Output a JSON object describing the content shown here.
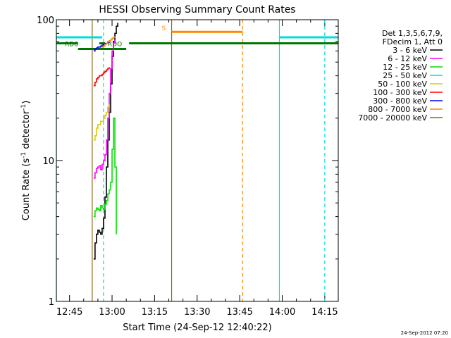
{
  "chart_data": {
    "type": "line",
    "title": "HESSI Observing Summary Count Rates",
    "xlabel": "Start Time (24-Sep-12 12:40:22)",
    "ylabel_main": "Count Rate (s",
    "ylabel_sup1": "-1",
    "ylabel_mid": " detector",
    "ylabel_sup2": "-1",
    "ylabel_end": ")",
    "footer_timestamp": "24-Sep-2012 07:20",
    "xlim": [
      "12:40:22",
      "14:19:45"
    ],
    "ylim": [
      1,
      100
    ],
    "y_scale": "log",
    "x_ticks": [
      "12:45",
      "13:00",
      "13:15",
      "13:30",
      "13:45",
      "14:00",
      "14:15"
    ],
    "y_ticks": [
      "1",
      "10",
      "100"
    ],
    "legend": {
      "header_lines": [
        "Det 1,3,5,6,7,9,",
        "FDecim 1, Att 0"
      ],
      "entries": [
        {
          "label": "3 - 6 keV",
          "color": "#000000"
        },
        {
          "label": "6 - 12 keV",
          "color": "#ff00ff"
        },
        {
          "label": "12 - 25 keV",
          "color": "#00e000"
        },
        {
          "label": "25 - 50 keV",
          "color": "#00dddd"
        },
        {
          "label": "50 - 100 keV",
          "color": "#d0d000"
        },
        {
          "label": "100 - 300 keV",
          "color": "#ff0000"
        },
        {
          "label": "300 - 800 keV",
          "color": "#0000ff"
        },
        {
          "label": "800 - 7000 keV",
          "color": "#ff8800"
        },
        {
          "label": "7000 - 20000 keV",
          "color": "#8b6914"
        }
      ]
    },
    "series": [
      {
        "name": "3 - 6 keV",
        "color": "#000000",
        "x": [
          "12:53:30",
          "12:54:00",
          "12:54:30",
          "12:55:00",
          "12:55:30",
          "12:56:00",
          "12:56:30",
          "12:57:00",
          "12:57:30",
          "12:58:00",
          "12:58:30",
          "12:59:00",
          "12:59:30",
          "13:00:00",
          "13:00:30",
          "13:01:00",
          "13:01:30",
          "13:02:00"
        ],
        "y": [
          2.0,
          2.6,
          3.0,
          3.2,
          3.1,
          3.0,
          3.3,
          3.9,
          5.5,
          9.0,
          14,
          22,
          35,
          55,
          70,
          80,
          90,
          95
        ]
      },
      {
        "name": "6 - 12 keV",
        "color": "#ff00ff",
        "x": [
          "12:53:30",
          "12:54:00",
          "12:54:30",
          "12:55:00",
          "12:55:30",
          "12:56:00",
          "12:56:30",
          "12:57:00",
          "12:57:30",
          "12:58:00",
          "12:58:30",
          "12:59:00",
          "12:59:30",
          "13:00:00",
          "13:00:30",
          "13:01:00"
        ],
        "y": [
          7.5,
          8.2,
          8.8,
          9.0,
          9.2,
          8.6,
          9.4,
          10.0,
          11,
          14,
          20,
          30,
          45,
          60,
          68,
          72
        ]
      },
      {
        "name": "12 - 25 keV",
        "color": "#00e000",
        "x": [
          "12:53:30",
          "12:54:00",
          "12:54:30",
          "12:55:00",
          "12:55:30",
          "12:56:00",
          "12:56:30",
          "12:57:00",
          "12:57:30",
          "12:58:00",
          "12:58:30",
          "12:59:00",
          "12:59:30",
          "13:00:00",
          "13:00:30",
          "13:01:00",
          "13:01:30"
        ],
        "y": [
          4.0,
          4.4,
          4.6,
          4.5,
          4.4,
          4.8,
          4.6,
          4.5,
          4.9,
          5.2,
          5.8,
          6.2,
          7.0,
          12,
          20,
          9,
          3
        ]
      },
      {
        "name": "50 - 100 keV",
        "color": "#d0d000",
        "x": [
          "12:53:30",
          "12:54:00",
          "12:54:30",
          "12:55:00",
          "12:55:30",
          "12:56:00",
          "12:56:30",
          "12:57:00",
          "12:57:30",
          "12:58:00",
          "12:58:30",
          "12:59:00"
        ],
        "y": [
          14,
          15,
          17,
          18,
          18,
          19,
          19,
          20,
          21,
          22,
          24,
          25
        ]
      },
      {
        "name": "100 - 300 keV",
        "color": "#ff0000",
        "x": [
          "12:53:30",
          "12:54:00",
          "12:54:30",
          "12:55:00",
          "12:55:30",
          "12:56:00",
          "12:56:30",
          "12:57:00",
          "12:57:30",
          "12:58:00",
          "12:58:30",
          "12:59:00"
        ],
        "y": [
          34,
          36,
          38,
          39,
          40,
          40,
          41,
          42,
          43,
          44,
          45,
          46
        ]
      },
      {
        "name": "300 - 800 keV",
        "color": "#0000ff",
        "x": [
          "12:53:30",
          "12:54:00",
          "12:54:30",
          "12:55:00",
          "12:55:30",
          "12:56:00",
          "12:56:30",
          "12:57:00",
          "12:57:30",
          "12:58:00",
          "12:58:30",
          "12:59:00"
        ],
        "y": [
          60,
          62,
          63,
          64,
          64,
          65,
          66,
          67,
          68,
          68,
          69,
          70
        ]
      },
      {
        "name": "800 - 7000 keV",
        "color": "#ff8800",
        "x": [
          "12:56:30",
          "12:57:00",
          "12:57:30",
          "12:58:00",
          "12:58:30",
          "12:59:00",
          "12:59:30",
          "13:00:00",
          "13:00:30",
          "13:01:00"
        ],
        "y": [
          64,
          65,
          67,
          68,
          70,
          71,
          72,
          74,
          75,
          76
        ]
      }
    ],
    "flags": [
      {
        "label": "",
        "color": "#00dddd",
        "y": 75,
        "x_start": "12:40:22",
        "x_end": "12:56:30"
      },
      {
        "label": "",
        "color": "#00dddd",
        "y": 75,
        "x_start": "13:59:00",
        "x_end": "14:19:45"
      },
      {
        "label": "RD6",
        "color": "#007700",
        "y": 68,
        "x_start": "12:40:22",
        "x_end": "12:48:00"
      },
      {
        "label": "",
        "color": "#007700",
        "y": 62,
        "x_start": "12:48:00",
        "x_end": "13:05:00"
      },
      {
        "label": "",
        "color": "#007700",
        "y": 68,
        "x_start": "13:06:00",
        "x_end": "14:19:45"
      },
      {
        "label": "RDO",
        "color": "#007700",
        "y": 68,
        "x_start": "12:55:30",
        "x_end": "12:57:30"
      },
      {
        "label": "S",
        "color": "#ff8800",
        "y": 82,
        "x_start": "13:21:00",
        "x_end": "13:46:00"
      }
    ],
    "vlines": [
      {
        "x": "12:40:22",
        "color": "#00dddd",
        "style": "solid"
      },
      {
        "x": "12:53:00",
        "color": "#8b6914",
        "style": "solid"
      },
      {
        "x": "12:57:00",
        "color": "#00dddd",
        "style": "dashed"
      },
      {
        "x": "13:21:00",
        "color": "#8b6914",
        "style": "solid"
      },
      {
        "x": "13:46:00",
        "color": "#ff8800",
        "style": "dashed"
      },
      {
        "x": "13:59:00",
        "color": "#00dddd",
        "style": "solid"
      },
      {
        "x": "14:15:00",
        "color": "#00dddd",
        "style": "dashed"
      }
    ]
  }
}
